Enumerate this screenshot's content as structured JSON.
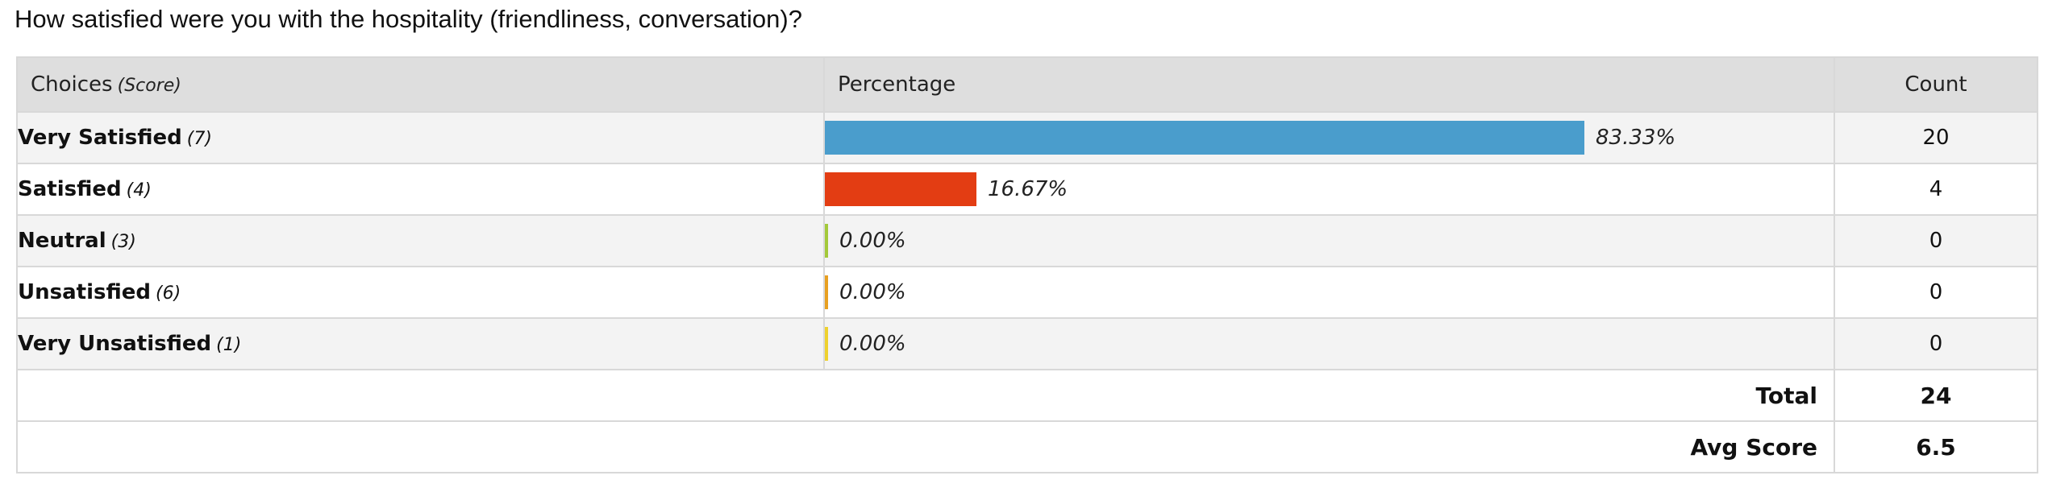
{
  "question": "How satisfied were you with the hospitality (friendliness, conversation)?",
  "headers": {
    "choices": "Choices",
    "score": "(Score)",
    "percentage": "Percentage",
    "count": "Count"
  },
  "chart_data": {
    "type": "bar",
    "orientation": "horizontal",
    "categories": [
      "Very Satisfied",
      "Satisfied",
      "Neutral",
      "Unsatisfied",
      "Very Unsatisfied"
    ],
    "scores": [
      "(7)",
      "(4)",
      "(3)",
      "(6)",
      "(1)"
    ],
    "values": [
      83.33,
      16.67,
      0.0,
      0.0,
      0.0
    ],
    "value_labels": [
      "83.33%",
      "16.67%",
      "0.00%",
      "0.00%",
      "0.00%"
    ],
    "counts": [
      "20",
      "4",
      "0",
      "0",
      "0"
    ],
    "colors": [
      "#4a9dcc",
      "#e33d13",
      "#a3c93a",
      "#e8a021",
      "#eed12e"
    ],
    "xlim": [
      0,
      100
    ],
    "grid": false,
    "legend": "none"
  },
  "summary": {
    "total_label": "Total",
    "total_value": "24",
    "avg_label": "Avg Score",
    "avg_value": "6.5"
  }
}
